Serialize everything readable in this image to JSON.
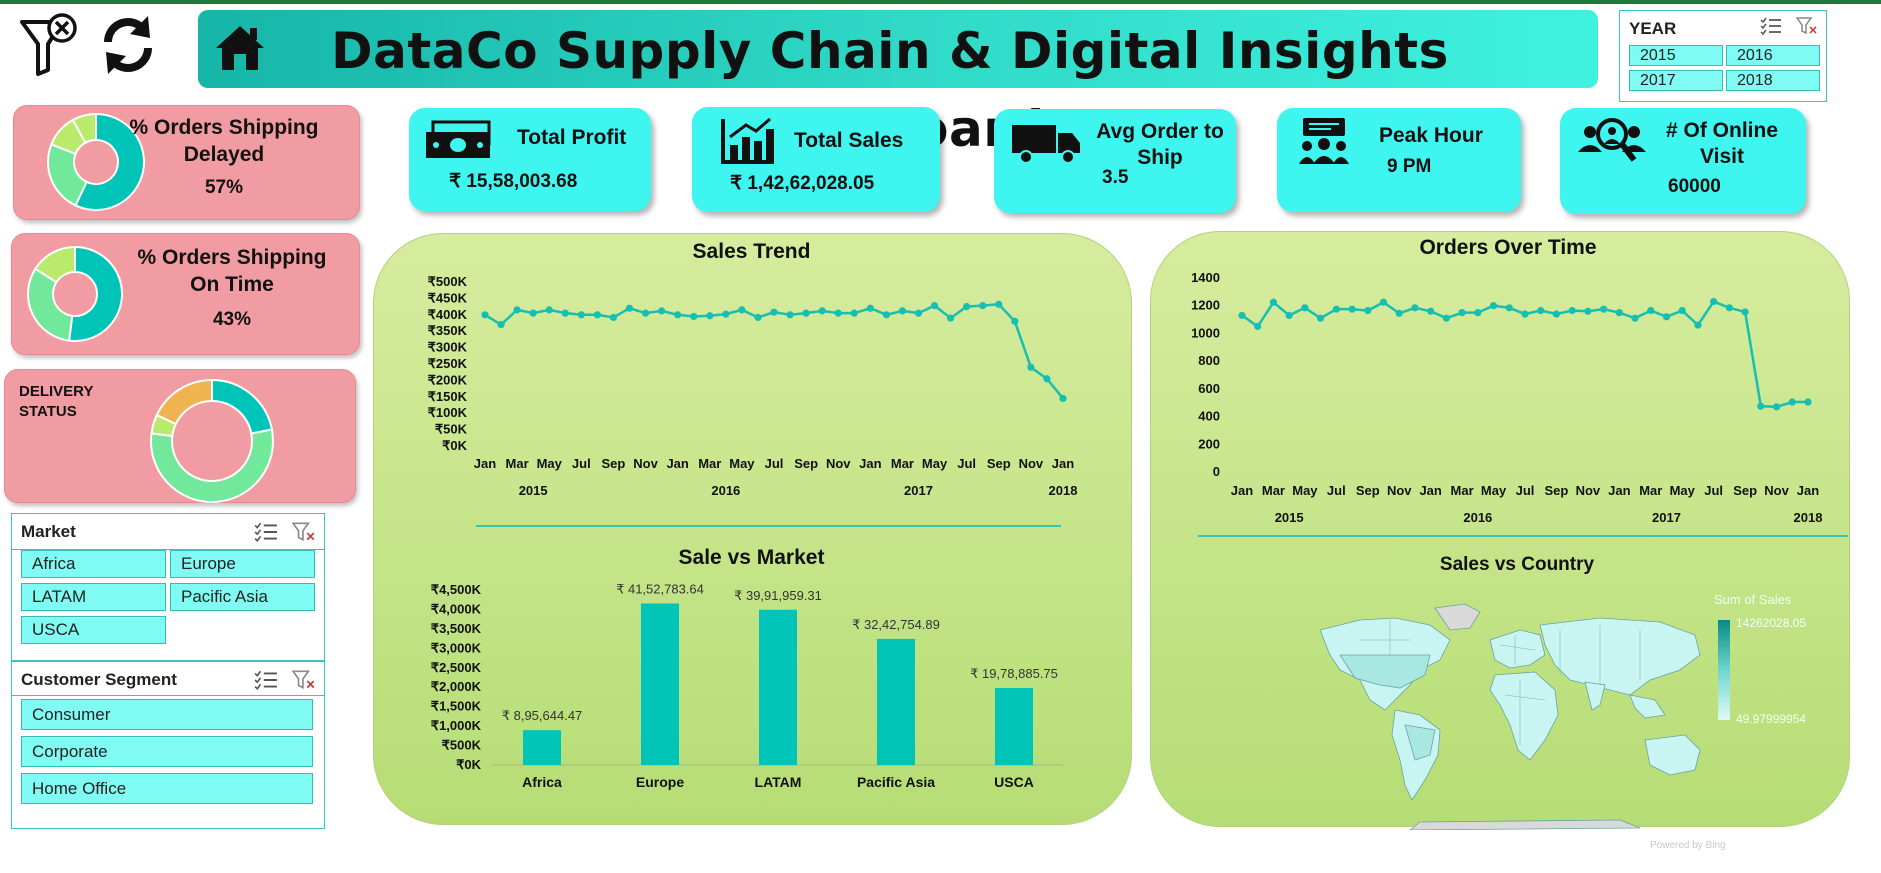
{
  "header": {
    "title": "DataCo Supply Chain & Digital Insights Dashboard"
  },
  "icons": {
    "clear_filter": "filter-clear-icon",
    "refresh": "refresh-icon",
    "home": "home-icon"
  },
  "year_slicer": {
    "title": "YEAR",
    "options": [
      "2015",
      "2016",
      "2017",
      "2018"
    ]
  },
  "market_slicer": {
    "title": "Market",
    "options": [
      "Africa",
      "Europe",
      "LATAM",
      "Pacific Asia",
      "USCA"
    ]
  },
  "segment_slicer": {
    "title": "Customer Segment",
    "options": [
      "Consumer",
      "Corporate",
      "Home Office"
    ]
  },
  "shipping_delayed": {
    "title_line1": "% Orders Shipping",
    "title_line2": "Delayed",
    "value": "57%"
  },
  "shipping_ontime": {
    "title_line1": "% Orders Shipping",
    "title_line2": "On Time",
    "value": "43%"
  },
  "delivery_status": {
    "title_line1": "DELIVERY",
    "title_line2": "STATUS"
  },
  "kpis": {
    "profit": {
      "label": "Total Profit",
      "value": "₹ 15,58,003.68",
      "icon": "money-icon"
    },
    "sales": {
      "label": "Total Sales",
      "value": "₹ 1,42,62,028.05",
      "icon": "bar-chart-icon"
    },
    "avg_ship": {
      "label_line1": "Avg Order to",
      "label_line2": "Ship",
      "value": "3.5",
      "icon": "truck-icon"
    },
    "peak_hour": {
      "label": "Peak Hour",
      "value": "9 PM",
      "icon": "meeting-icon"
    },
    "online_visit": {
      "label_line1": "# Of Online",
      "label_line2": "Visit",
      "value": "60000",
      "icon": "users-search-icon"
    }
  },
  "map": {
    "title": "Sales vs Country",
    "legend_title": "Sum of Sales",
    "legend_max": "14262028.05",
    "legend_min": "49.97999954",
    "credit": "Powered by Bing"
  },
  "colors": {
    "teal": "#00c4b8",
    "kpi": "#3ff5ef",
    "pink": "#f09ca2",
    "green": "#c6e58a"
  },
  "chart_data": [
    {
      "type": "pie",
      "title": "% Orders Shipping Delayed",
      "values": [
        57,
        24,
        11,
        8
      ],
      "colors": [
        "#00c4b8",
        "#72e89a",
        "#b9ea6c",
        "#b9ea6c"
      ]
    },
    {
      "type": "pie",
      "title": "% Orders Shipping On Time",
      "values": [
        52,
        32,
        16
      ],
      "colors": [
        "#00c4b8",
        "#72e89a",
        "#b9ea6c"
      ]
    },
    {
      "type": "pie",
      "title": "DELIVERY STATUS",
      "values": [
        22,
        55,
        5,
        18
      ],
      "colors": [
        "#00c4b8",
        "#72e89a",
        "#b9ea6c",
        "#efb450"
      ]
    },
    {
      "type": "line",
      "title": "Sales Trend",
      "ylabel_ticks": [
        "₹0K",
        "₹50K",
        "₹100K",
        "₹150K",
        "₹200K",
        "₹250K",
        "₹300K",
        "₹350K",
        "₹400K",
        "₹450K",
        "₹500K"
      ],
      "ylim": [
        0,
        500000
      ],
      "x_tick_labels": [
        "Jan",
        "Mar",
        "May",
        "Jul",
        "Sep",
        "Nov",
        "Jan",
        "Mar",
        "May",
        "Jul",
        "Sep",
        "Nov",
        "Jan",
        "Mar",
        "May",
        "Jul",
        "Sep",
        "Nov",
        "Jan"
      ],
      "year_labels": [
        "2015",
        "2016",
        "2017",
        "2018"
      ],
      "series": [
        {
          "values": [
            400000,
            370000,
            415000,
            405000,
            415000,
            405000,
            400000,
            400000,
            392000,
            420000,
            405000,
            412000,
            400000,
            395000,
            397000,
            402000,
            415000,
            392000,
            408000,
            400000,
            405000,
            412000,
            405000,
            405000,
            420000,
            400000,
            412000,
            405000,
            428000,
            390000,
            425000,
            428000,
            432000,
            380000,
            240000,
            205000,
            145000
          ]
        }
      ]
    },
    {
      "type": "line",
      "title": "Orders Over Time",
      "ylabel_ticks": [
        "0",
        "200",
        "400",
        "600",
        "800",
        "1000",
        "1200",
        "1400"
      ],
      "ylim": [
        0,
        1400
      ],
      "x_tick_labels": [
        "Jan",
        "Mar",
        "May",
        "Jul",
        "Sep",
        "Nov",
        "Jan",
        "Mar",
        "May",
        "Jul",
        "Sep",
        "Nov",
        "Jan",
        "Mar",
        "May",
        "Jul",
        "Sep",
        "Nov",
        "Jan"
      ],
      "year_labels": [
        "2015",
        "2016",
        "2017",
        "2018"
      ],
      "series": [
        {
          "values": [
            1130,
            1050,
            1225,
            1130,
            1185,
            1110,
            1175,
            1175,
            1165,
            1225,
            1145,
            1185,
            1160,
            1110,
            1150,
            1150,
            1200,
            1185,
            1140,
            1165,
            1140,
            1165,
            1160,
            1175,
            1150,
            1110,
            1165,
            1120,
            1165,
            1060,
            1230,
            1185,
            1155,
            475,
            470,
            505,
            505
          ]
        }
      ]
    },
    {
      "type": "bar",
      "title": "Sale vs Market",
      "categories": [
        "Africa",
        "Europe",
        "LATAM",
        "Pacific Asia",
        "USCA"
      ],
      "values": [
        895644.47,
        4152783.64,
        3991959.31,
        3242754.89,
        1978885.75
      ],
      "data_labels": [
        "₹ 8,95,644.47",
        "₹ 41,52,783.64",
        "₹ 39,91,959.31",
        "₹ 32,42,754.89",
        "₹ 19,78,885.75"
      ],
      "ylabel_ticks": [
        "₹0K",
        "₹500K",
        "₹1,000K",
        "₹1,500K",
        "₹2,000K",
        "₹2,500K",
        "₹3,000K",
        "₹3,500K",
        "₹4,000K",
        "₹4,500K"
      ],
      "ylim": [
        0,
        4500000
      ]
    }
  ]
}
